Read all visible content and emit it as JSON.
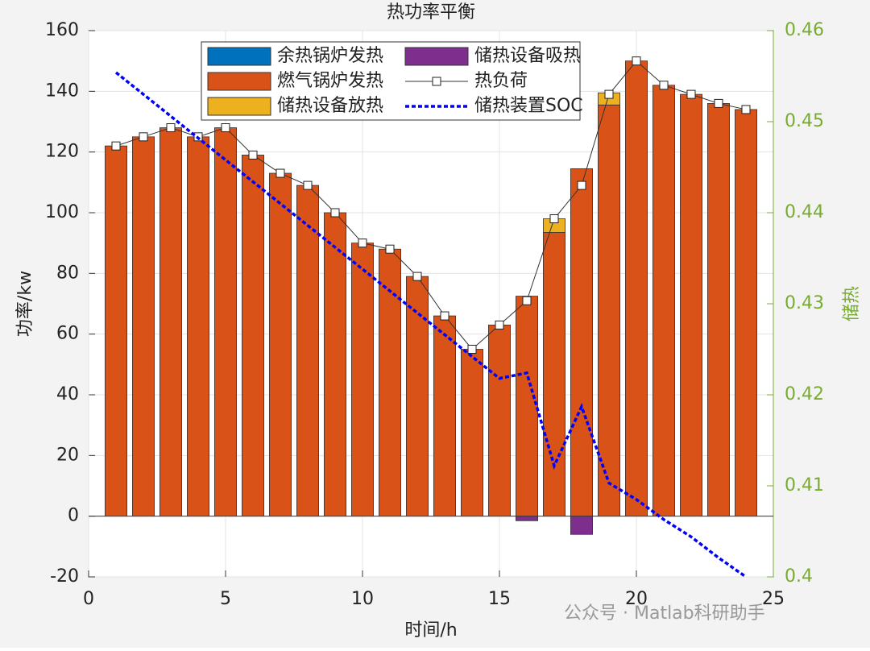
{
  "chart_data": {
    "type": "bar",
    "title": "热功率平衡",
    "x_label": "时间/h",
    "y_label": "功率/kw",
    "y2_label": "储热",
    "x": [
      1,
      2,
      3,
      4,
      5,
      6,
      7,
      8,
      9,
      10,
      11,
      12,
      13,
      14,
      15,
      16,
      17,
      18,
      19,
      20,
      21,
      22,
      23,
      24
    ],
    "xlim": [
      0,
      25
    ],
    "xticks": [
      0,
      5,
      10,
      15,
      20,
      25
    ],
    "ylim": [
      -20,
      160
    ],
    "yticks": [
      -20,
      0,
      20,
      40,
      60,
      80,
      100,
      120,
      140,
      160
    ],
    "y2lim": [
      0.4,
      0.46
    ],
    "y2ticks": [
      0.4,
      0.41,
      0.42,
      0.43,
      0.44,
      0.45,
      0.46
    ],
    "y2_color": "#77ac30",
    "grid": true,
    "legend": "top",
    "series": [
      {
        "name": "余热锅炉发热",
        "type": "bar",
        "color": "#0072bd",
        "values": [
          0,
          0,
          0,
          0,
          0,
          0,
          0,
          0,
          0,
          0,
          0,
          0,
          0,
          0,
          0,
          0,
          0,
          0,
          0,
          0,
          0,
          0,
          0,
          0
        ]
      },
      {
        "name": "燃气锅炉发热",
        "type": "bar",
        "color": "#d95319",
        "values": [
          122,
          125,
          128,
          125,
          128,
          119,
          113,
          109,
          100,
          90,
          88,
          79,
          66,
          55,
          63,
          72.5,
          93.5,
          114.5,
          135.5,
          150,
          142,
          139,
          136,
          134
        ]
      },
      {
        "name": "储热设备放热",
        "type": "bar",
        "color": "#edb120",
        "values": [
          0,
          0,
          0,
          0,
          0,
          0,
          0,
          0,
          0,
          0,
          0,
          0,
          0,
          0,
          0,
          0,
          4.5,
          0,
          4,
          0,
          0,
          0,
          0,
          0
        ]
      },
      {
        "name": "储热设备吸热",
        "type": "bar",
        "color": "#7e2f8e",
        "values": [
          0,
          0,
          0,
          0,
          0,
          0,
          0,
          0,
          0,
          0,
          0,
          0,
          0,
          0,
          0,
          -1.5,
          0,
          -6,
          0,
          0,
          0,
          0,
          0,
          0
        ]
      },
      {
        "name": "热负荷",
        "type": "line",
        "marker": "square",
        "color": "#333333",
        "values": [
          122,
          125,
          128,
          125,
          128,
          119,
          113,
          109,
          100,
          90,
          88,
          79,
          66,
          55,
          63,
          71,
          98,
          109,
          139,
          150,
          142,
          139,
          136,
          134
        ]
      },
      {
        "name": "储热装置SOC",
        "type": "line",
        "dash": true,
        "axis": "y2",
        "color": "#0000ff",
        "values": [
          0.4554,
          0.453,
          0.4506,
          0.4482,
          0.4458,
          0.4434,
          0.441,
          0.4386,
          0.4362,
          0.4338,
          0.4314,
          0.429,
          0.4266,
          0.4242,
          0.4218,
          0.4224,
          0.4122,
          0.4187,
          0.4103,
          0.4085,
          0.4063,
          0.4044,
          0.4021,
          0.4
        ]
      }
    ],
    "annotations": [
      {
        "text": "公众号 · Matlab科研助手"
      }
    ]
  }
}
